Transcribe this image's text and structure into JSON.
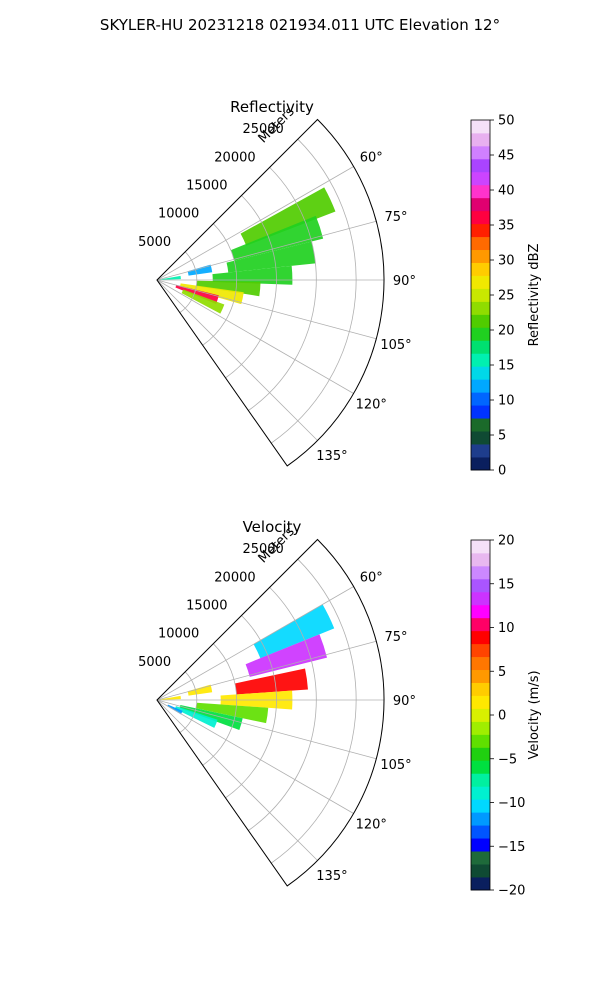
{
  "figure": {
    "suptitle": "SKYLER-HU  20231218  021934.011 UTC Elevation 12°"
  },
  "chart_data": [
    {
      "type": "heatmap",
      "subtype": "polar-sector",
      "title": "Reflectivity",
      "radial_label": "Meters",
      "radial_ticks": [
        "5000",
        "10000",
        "15000",
        "20000",
        "25000"
      ],
      "radial_range": [
        0,
        28500
      ],
      "azimuth_range_deg": [
        45,
        145
      ],
      "azimuth_ticks": [
        "60°",
        "75°",
        "90°",
        "105°",
        "120°",
        "135°"
      ],
      "azimuth_tick_values": [
        60,
        75,
        90,
        105,
        120,
        135
      ],
      "grid": true,
      "colorbar": {
        "label": "Reflectivity dBZ",
        "range": [
          0,
          50
        ],
        "ticks": [
          "0",
          "5",
          "10",
          "15",
          "20",
          "25",
          "30",
          "35",
          "40",
          "45",
          "50"
        ],
        "colors": [
          "#0a1f5e",
          "#1e3d8c",
          "#0f4a33",
          "#1b6a2a",
          "#0033ff",
          "#0066ff",
          "#00a8ff",
          "#00d8e8",
          "#00f0b0",
          "#00e070",
          "#20d020",
          "#50cc00",
          "#90dc00",
          "#c8e800",
          "#f0e800",
          "#ffcc00",
          "#ff9900",
          "#ff6a00",
          "#ff2000",
          "#ff0040",
          "#e00070",
          "#ff33cc",
          "#cc44ff",
          "#aa44ff",
          "#d080ff",
          "#e8b0f0",
          "#f5e0f8"
        ]
      },
      "cells": [
        {
          "az": 65,
          "r": [
            12000,
            24000
          ],
          "value": 21
        },
        {
          "az": 72,
          "r": [
            10000,
            21500
          ],
          "value": 20
        },
        {
          "az": 80,
          "r": [
            9000,
            20000
          ],
          "value": 19
        },
        {
          "az": 88,
          "r": [
            7000,
            17000
          ],
          "value": 20
        },
        {
          "az": 95,
          "r": [
            5000,
            13000
          ],
          "value": 22
        },
        {
          "az": 102,
          "r": [
            3000,
            11000
          ],
          "value": 27
        },
        {
          "az": 108,
          "r": [
            2500,
            8000
          ],
          "value": 36
        },
        {
          "az": 114,
          "r": [
            3500,
            9000
          ],
          "value": 24
        },
        {
          "az": 84,
          "r": [
            0,
            3000
          ],
          "value": 15
        },
        {
          "az": 78,
          "r": [
            4000,
            7000
          ],
          "value": 12
        }
      ]
    },
    {
      "type": "heatmap",
      "subtype": "polar-sector",
      "title": "Velocity",
      "radial_label": "Meters",
      "radial_ticks": [
        "5000",
        "10000",
        "15000",
        "20000",
        "25000"
      ],
      "radial_range": [
        0,
        28500
      ],
      "azimuth_range_deg": [
        45,
        145
      ],
      "azimuth_ticks": [
        "60°",
        "75°",
        "90°",
        "105°",
        "120°",
        "135°"
      ],
      "azimuth_tick_values": [
        60,
        75,
        90,
        105,
        120,
        135
      ],
      "grid": true,
      "colorbar": {
        "label": "Velocity (m/s)",
        "range": [
          -20,
          20
        ],
        "ticks": [
          "-20",
          "-15",
          "-10",
          "-5",
          "0",
          "5",
          "10",
          "15",
          "20"
        ],
        "colors": [
          "#0a1f5e",
          "#0f4a33",
          "#1e6a3a",
          "#0000ff",
          "#0055ff",
          "#0099ff",
          "#00d8ff",
          "#00f0d0",
          "#00f0a0",
          "#00e040",
          "#20d010",
          "#60e000",
          "#a0ee00",
          "#d8f000",
          "#ffe800",
          "#ffcc00",
          "#ff9900",
          "#ff7700",
          "#ff4400",
          "#ff0000",
          "#ff0066",
          "#ff00ff",
          "#cc33ff",
          "#aa55ff",
          "#cc88ff",
          "#e8b8f0",
          "#f5e0f8"
        ]
      },
      "cells": [
        {
          "az": 64,
          "r": [
            14000,
            24000
          ],
          "value": -11
        },
        {
          "az": 72,
          "r": [
            12000,
            22000
          ],
          "value": 14
        },
        {
          "az": 82,
          "r": [
            10000,
            19000
          ],
          "value": 9
        },
        {
          "az": 90,
          "r": [
            8000,
            17000
          ],
          "value": 2
        },
        {
          "az": 98,
          "r": [
            5000,
            14000
          ],
          "value": -3
        },
        {
          "az": 106,
          "r": [
            3000,
            11000
          ],
          "value": -6
        },
        {
          "az": 112,
          "r": [
            2500,
            8000
          ],
          "value": -9
        },
        {
          "az": 117,
          "r": [
            1500,
            3500
          ],
          "value": -12
        },
        {
          "az": 84,
          "r": [
            0,
            3000
          ],
          "value": 1
        },
        {
          "az": 78,
          "r": [
            4000,
            7000
          ],
          "value": 2
        }
      ]
    }
  ]
}
